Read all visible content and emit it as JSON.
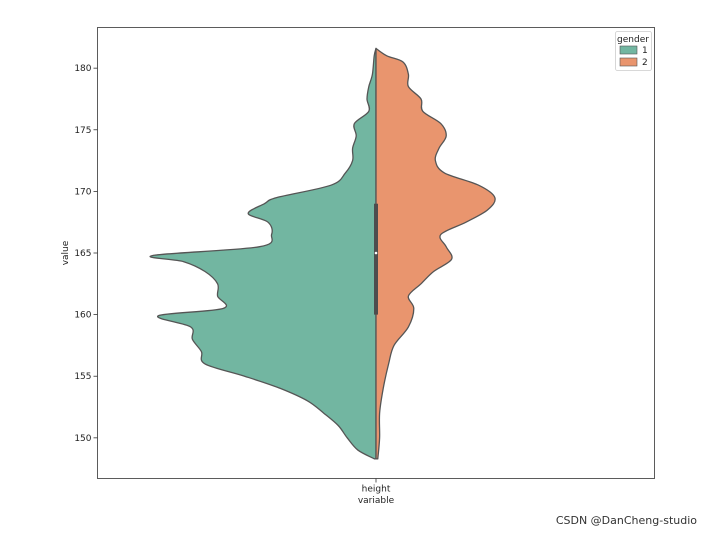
{
  "chart_data": {
    "type": "violin",
    "split": true,
    "title": "",
    "xlabel": "variable",
    "ylabel": "value",
    "categories": [
      "height"
    ],
    "ylim": [
      146.7,
      183.3
    ],
    "yticks": [
      150,
      155,
      160,
      165,
      170,
      175,
      180
    ],
    "grid": false,
    "legend": {
      "title": "gender",
      "placement": "top-right"
    },
    "series": [
      {
        "name": "1",
        "color": "#72b6a1",
        "density": [
          [
            148.3,
            0.01
          ],
          [
            149.0,
            0.1
          ],
          [
            150.0,
            0.16
          ],
          [
            151.0,
            0.21
          ],
          [
            152.0,
            0.29
          ],
          [
            153.0,
            0.38
          ],
          [
            154.0,
            0.53
          ],
          [
            155.0,
            0.73
          ],
          [
            156.0,
            0.95
          ],
          [
            157.0,
            0.97
          ],
          [
            158.0,
            1.02
          ],
          [
            159.0,
            1.03
          ],
          [
            159.9,
            1.21
          ],
          [
            160.5,
            0.85
          ],
          [
            161.5,
            0.88
          ],
          [
            162.5,
            0.88
          ],
          [
            163.5,
            0.95
          ],
          [
            164.3,
            1.07
          ],
          [
            164.8,
            1.24
          ],
          [
            165.5,
            0.65
          ],
          [
            166.5,
            0.58
          ],
          [
            167.5,
            0.6
          ],
          [
            168.2,
            0.71
          ],
          [
            169.0,
            0.62
          ],
          [
            169.5,
            0.55
          ],
          [
            170.5,
            0.25
          ],
          [
            171.5,
            0.17
          ],
          [
            172.5,
            0.13
          ],
          [
            173.5,
            0.13
          ],
          [
            174.5,
            0.11
          ],
          [
            175.5,
            0.12
          ],
          [
            176.5,
            0.04
          ],
          [
            177.5,
            0.05
          ],
          [
            178.5,
            0.04
          ],
          [
            179.5,
            0.02
          ],
          [
            181.0,
            0.01
          ],
          [
            181.6,
            0.0
          ]
        ]
      },
      {
        "name": "2",
        "color": "#e9956e",
        "density": [
          [
            148.3,
            0.01
          ],
          [
            150.0,
            0.02
          ],
          [
            152.0,
            0.02
          ],
          [
            154.0,
            0.04
          ],
          [
            156.0,
            0.07
          ],
          [
            157.5,
            0.1
          ],
          [
            159.0,
            0.18
          ],
          [
            160.5,
            0.21
          ],
          [
            161.5,
            0.18
          ],
          [
            162.5,
            0.25
          ],
          [
            163.5,
            0.32
          ],
          [
            164.5,
            0.42
          ],
          [
            165.5,
            0.39
          ],
          [
            166.5,
            0.36
          ],
          [
            167.5,
            0.5
          ],
          [
            168.5,
            0.62
          ],
          [
            169.5,
            0.66
          ],
          [
            170.5,
            0.57
          ],
          [
            171.5,
            0.38
          ],
          [
            172.5,
            0.33
          ],
          [
            173.5,
            0.35
          ],
          [
            174.5,
            0.39
          ],
          [
            175.5,
            0.36
          ],
          [
            176.5,
            0.26
          ],
          [
            177.5,
            0.25
          ],
          [
            178.5,
            0.18
          ],
          [
            179.5,
            0.18
          ],
          [
            180.5,
            0.15
          ],
          [
            181.0,
            0.06
          ],
          [
            181.6,
            0.0
          ]
        ]
      }
    ],
    "box": {
      "q1": 160.0,
      "median": 165.0,
      "q3": 169.0
    }
  },
  "watermark": "CSDN @DanCheng-studio"
}
